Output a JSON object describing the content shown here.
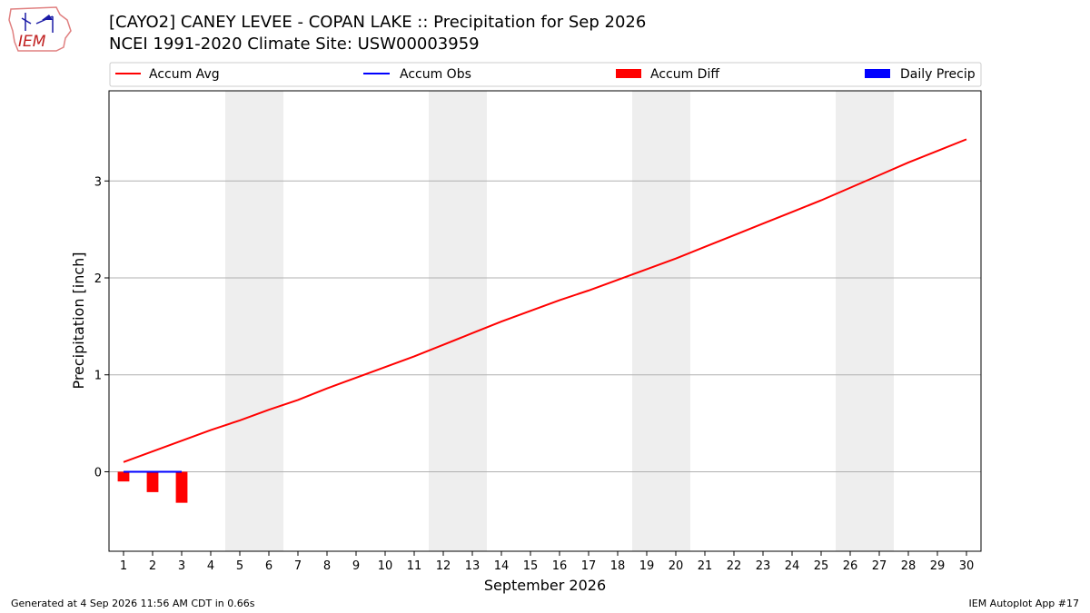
{
  "header": {
    "title_line1": "[CAYO2] CANEY LEVEE - COPAN LAKE :: Precipitation for Sep 2026",
    "title_line2": "NCEI 1991-2020 Climate Site: USW00003959",
    "logo_text": "IEM"
  },
  "footer": {
    "left": "Generated at 4 Sep 2026 11:56 AM CDT in 0.66s",
    "right": "IEM Autoplot App #17"
  },
  "colors": {
    "accum_avg": "#ff0000",
    "accum_obs": "#0000ff",
    "accum_diff": "#ff0000",
    "daily_precip": "#0000ff",
    "weekend_shade": "#eeeeee",
    "grid": "#b0b0b0"
  },
  "chart_data": {
    "type": "line",
    "xlabel": "September 2026",
    "ylabel": "Precipitation [inch]",
    "x": [
      1,
      2,
      3,
      4,
      5,
      6,
      7,
      8,
      9,
      10,
      11,
      12,
      13,
      14,
      15,
      16,
      17,
      18,
      19,
      20,
      21,
      22,
      23,
      24,
      25,
      26,
      27,
      28,
      29,
      30
    ],
    "xlim": [
      0.5,
      30.5
    ],
    "ylim": [
      -0.82,
      3.93
    ],
    "yticks": [
      0,
      1,
      2,
      3
    ],
    "grid": "horizontal",
    "legend_position": "top",
    "legend": [
      "Accum Avg",
      "Accum Obs",
      "Accum Diff",
      "Daily Precip"
    ],
    "weekend_shading": [
      [
        4.5,
        6.5
      ],
      [
        11.5,
        13.5
      ],
      [
        18.5,
        20.5
      ],
      [
        25.5,
        27.5
      ]
    ],
    "series": [
      {
        "name": "Accum Avg",
        "type": "line",
        "x": [
          1,
          2,
          3,
          4,
          5,
          6,
          7,
          8,
          9,
          10,
          11,
          12,
          13,
          14,
          15,
          16,
          17,
          18,
          19,
          20,
          21,
          22,
          23,
          24,
          25,
          26,
          27,
          28,
          29,
          30
        ],
        "values": [
          0.1,
          0.21,
          0.32,
          0.43,
          0.53,
          0.64,
          0.74,
          0.86,
          0.97,
          1.08,
          1.19,
          1.31,
          1.43,
          1.55,
          1.66,
          1.77,
          1.87,
          1.98,
          2.09,
          2.2,
          2.32,
          2.44,
          2.56,
          2.68,
          2.8,
          2.93,
          3.06,
          3.19,
          3.31,
          3.43
        ]
      },
      {
        "name": "Accum Obs",
        "type": "line",
        "x": [
          1,
          2,
          3
        ],
        "values": [
          0.0,
          0.0,
          0.0
        ]
      },
      {
        "name": "Accum Diff",
        "type": "bar",
        "x": [
          1,
          2,
          3
        ],
        "values": [
          -0.1,
          -0.21,
          -0.32
        ]
      },
      {
        "name": "Daily Precip",
        "type": "bar",
        "x": [
          1,
          2,
          3
        ],
        "values": [
          0.0,
          0.0,
          0.0
        ]
      }
    ]
  }
}
